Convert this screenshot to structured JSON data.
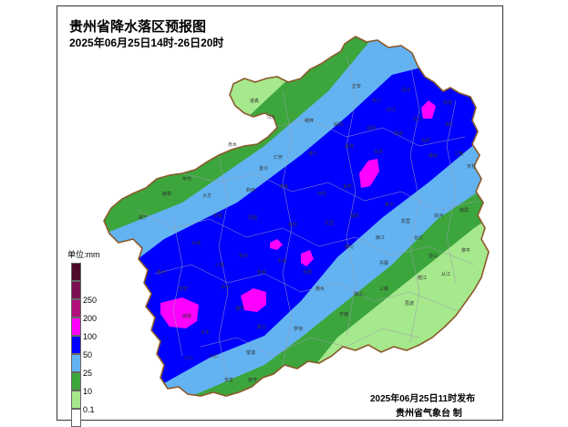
{
  "header": {
    "title": "贵州省降水落区预报图",
    "subtitle": "2025年06月25日14时-26日20时"
  },
  "legend": {
    "title": "单位:mm",
    "items": [
      {
        "label": "",
        "color": "#4d0a2a"
      },
      {
        "label": "250",
        "color": "#7a1050"
      },
      {
        "label": "200",
        "color": "#b0107a"
      },
      {
        "label": "100",
        "color": "#ff00ff"
      },
      {
        "label": "50",
        "color": "#0000ff"
      },
      {
        "label": "25",
        "color": "#63b3f2"
      },
      {
        "label": "10",
        "color": "#3ca63c"
      },
      {
        "label": "0.1",
        "color": "#a6e88c"
      }
    ],
    "bottom_label": ""
  },
  "footer": {
    "issued": "2025年06月25日11时发布",
    "agency": "贵州省气象台 制"
  },
  "map": {
    "colors": {
      "light_green": "#a6e88c",
      "green": "#3ca63c",
      "light_blue": "#63b3f2",
      "blue": "#0000ff",
      "magenta": "#ff00ff",
      "border": "#8a5a2b"
    },
    "county_labels": [
      "道真",
      "正安",
      "务川",
      "沿河",
      "松桃",
      "印江",
      "江口",
      "铜仁",
      "习水",
      "桐梓",
      "绥阳",
      "凤冈",
      "思南",
      "石阡",
      "赤水",
      "仁怀",
      "遵义",
      "湄潭",
      "余庆",
      "镇远",
      "三穗",
      "天柱",
      "毕节",
      "大方",
      "金沙",
      "黔西",
      "息烽",
      "开阳",
      "瓮安",
      "黄平",
      "凯里",
      "剑河",
      "锦屏",
      "威宁",
      "赫章",
      "织金",
      "清镇",
      "贵阳",
      "龙里",
      "福泉",
      "麻江",
      "台江",
      "雷山",
      "黎平",
      "水城",
      "六枝",
      "普定",
      "安顺",
      "平坝",
      "长顺",
      "都匀",
      "丹寨",
      "榕江",
      "从江",
      "盘州",
      "普安",
      "关岭",
      "镇宁",
      "紫云",
      "惠水",
      "独山",
      "三都",
      "晴隆",
      "贞丰",
      "望谟",
      "罗甸",
      "平塘",
      "荔波",
      "兴仁",
      "兴义",
      "安龙",
      "册亨"
    ]
  }
}
